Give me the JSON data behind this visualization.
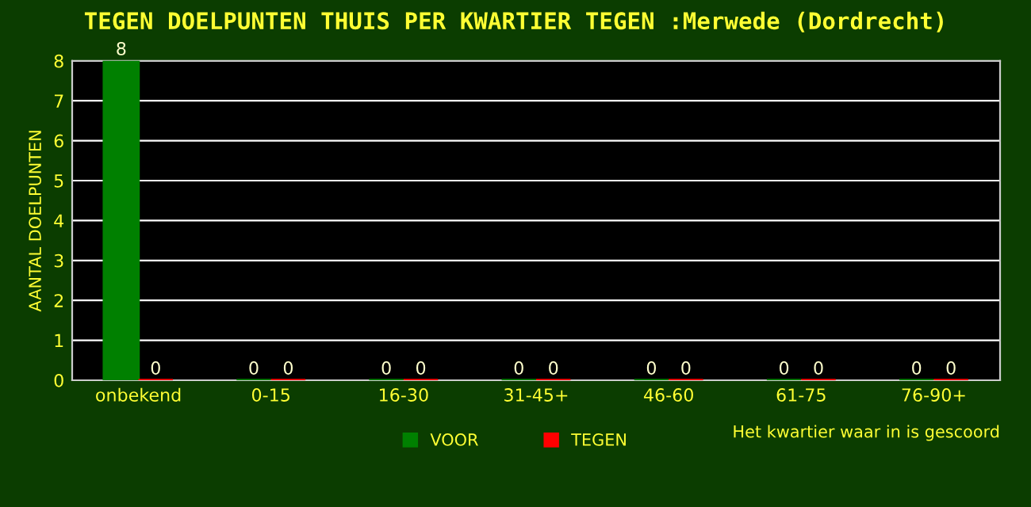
{
  "chart_data": {
    "type": "bar",
    "title": "TEGEN DOELPUNTEN THUIS PER KWARTIER TEGEN :Merwede (Dordrecht)",
    "ylabel": "AANTAL DOELPUNTEN",
    "xlabel": "Het kwartier waar in is gescoord",
    "categories": [
      "onbekend",
      "0-15",
      "16-30",
      "31-45+",
      "46-60",
      "61-75",
      "76-90+"
    ],
    "series": [
      {
        "name": "VOOR",
        "color": "#008000",
        "values": [
          8,
          0,
          0,
          0,
          0,
          0,
          0
        ]
      },
      {
        "name": "TEGEN",
        "color": "#ff0000",
        "values": [
          0,
          0,
          0,
          0,
          0,
          0,
          0
        ]
      }
    ],
    "ylim": [
      0,
      8
    ],
    "yticks": [
      0,
      1,
      2,
      3,
      4,
      5,
      6,
      7,
      8
    ],
    "grid": "y",
    "legend": "bottom",
    "data_labels": true
  }
}
